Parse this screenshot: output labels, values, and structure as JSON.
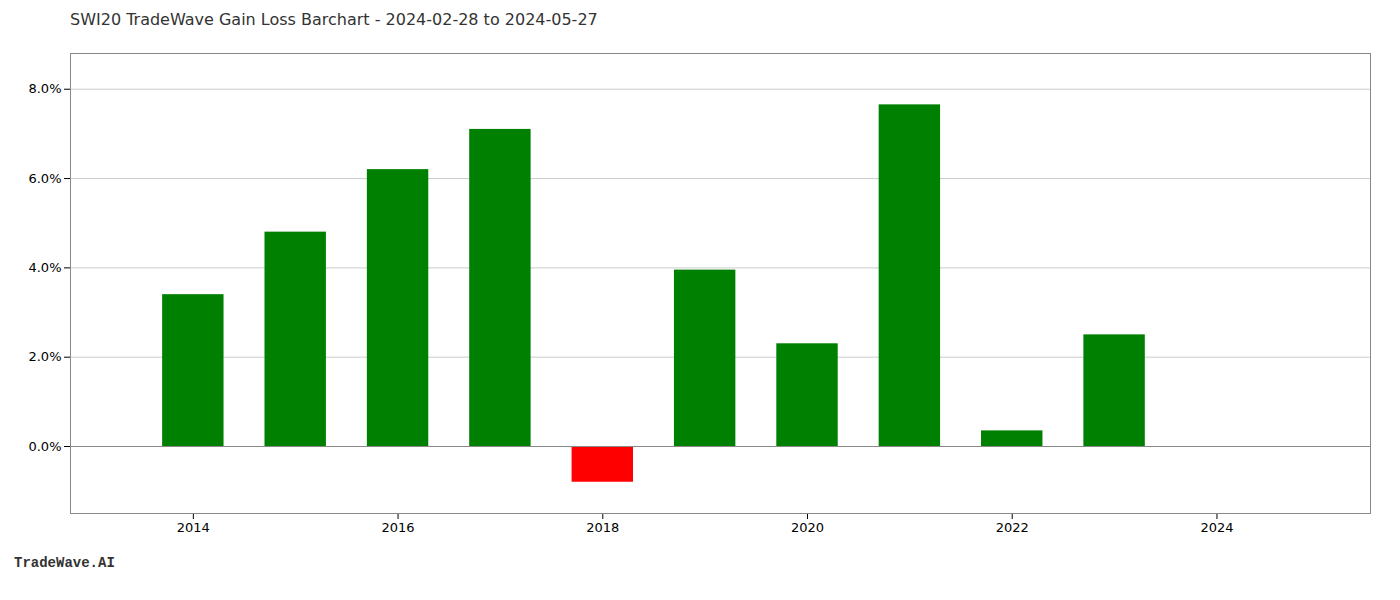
{
  "chart_data": {
    "type": "bar",
    "title": "SWI20 TradeWave Gain Loss Barchart - 2024-02-28 to 2024-05-27",
    "annotations": [
      "TradeWave.AI"
    ],
    "x": [
      2014,
      2015,
      2016,
      2017,
      2018,
      2019,
      2020,
      2021,
      2022,
      2023
    ],
    "values": [
      0.034,
      0.048,
      0.062,
      0.071,
      -0.008,
      0.0395,
      0.023,
      0.0765,
      0.0035,
      0.025
    ],
    "colors": [
      "#008000",
      "#008000",
      "#008000",
      "#008000",
      "#ff0000",
      "#008000",
      "#008000",
      "#008000",
      "#008000",
      "#008000"
    ],
    "xlim": [
      2012.8,
      2025.5
    ],
    "xticks": [
      2014,
      2016,
      2018,
      2020,
      2022,
      2024
    ],
    "ylim": [
      -0.015,
      0.088
    ],
    "yticks": [
      {
        "value": 0.0,
        "label": "0.0%"
      },
      {
        "value": 0.02,
        "label": "2.0%"
      },
      {
        "value": 0.04,
        "label": "4.0%"
      },
      {
        "value": 0.06,
        "label": "6.0%"
      },
      {
        "value": 0.08,
        "label": "8.0%"
      }
    ],
    "grid": true
  }
}
